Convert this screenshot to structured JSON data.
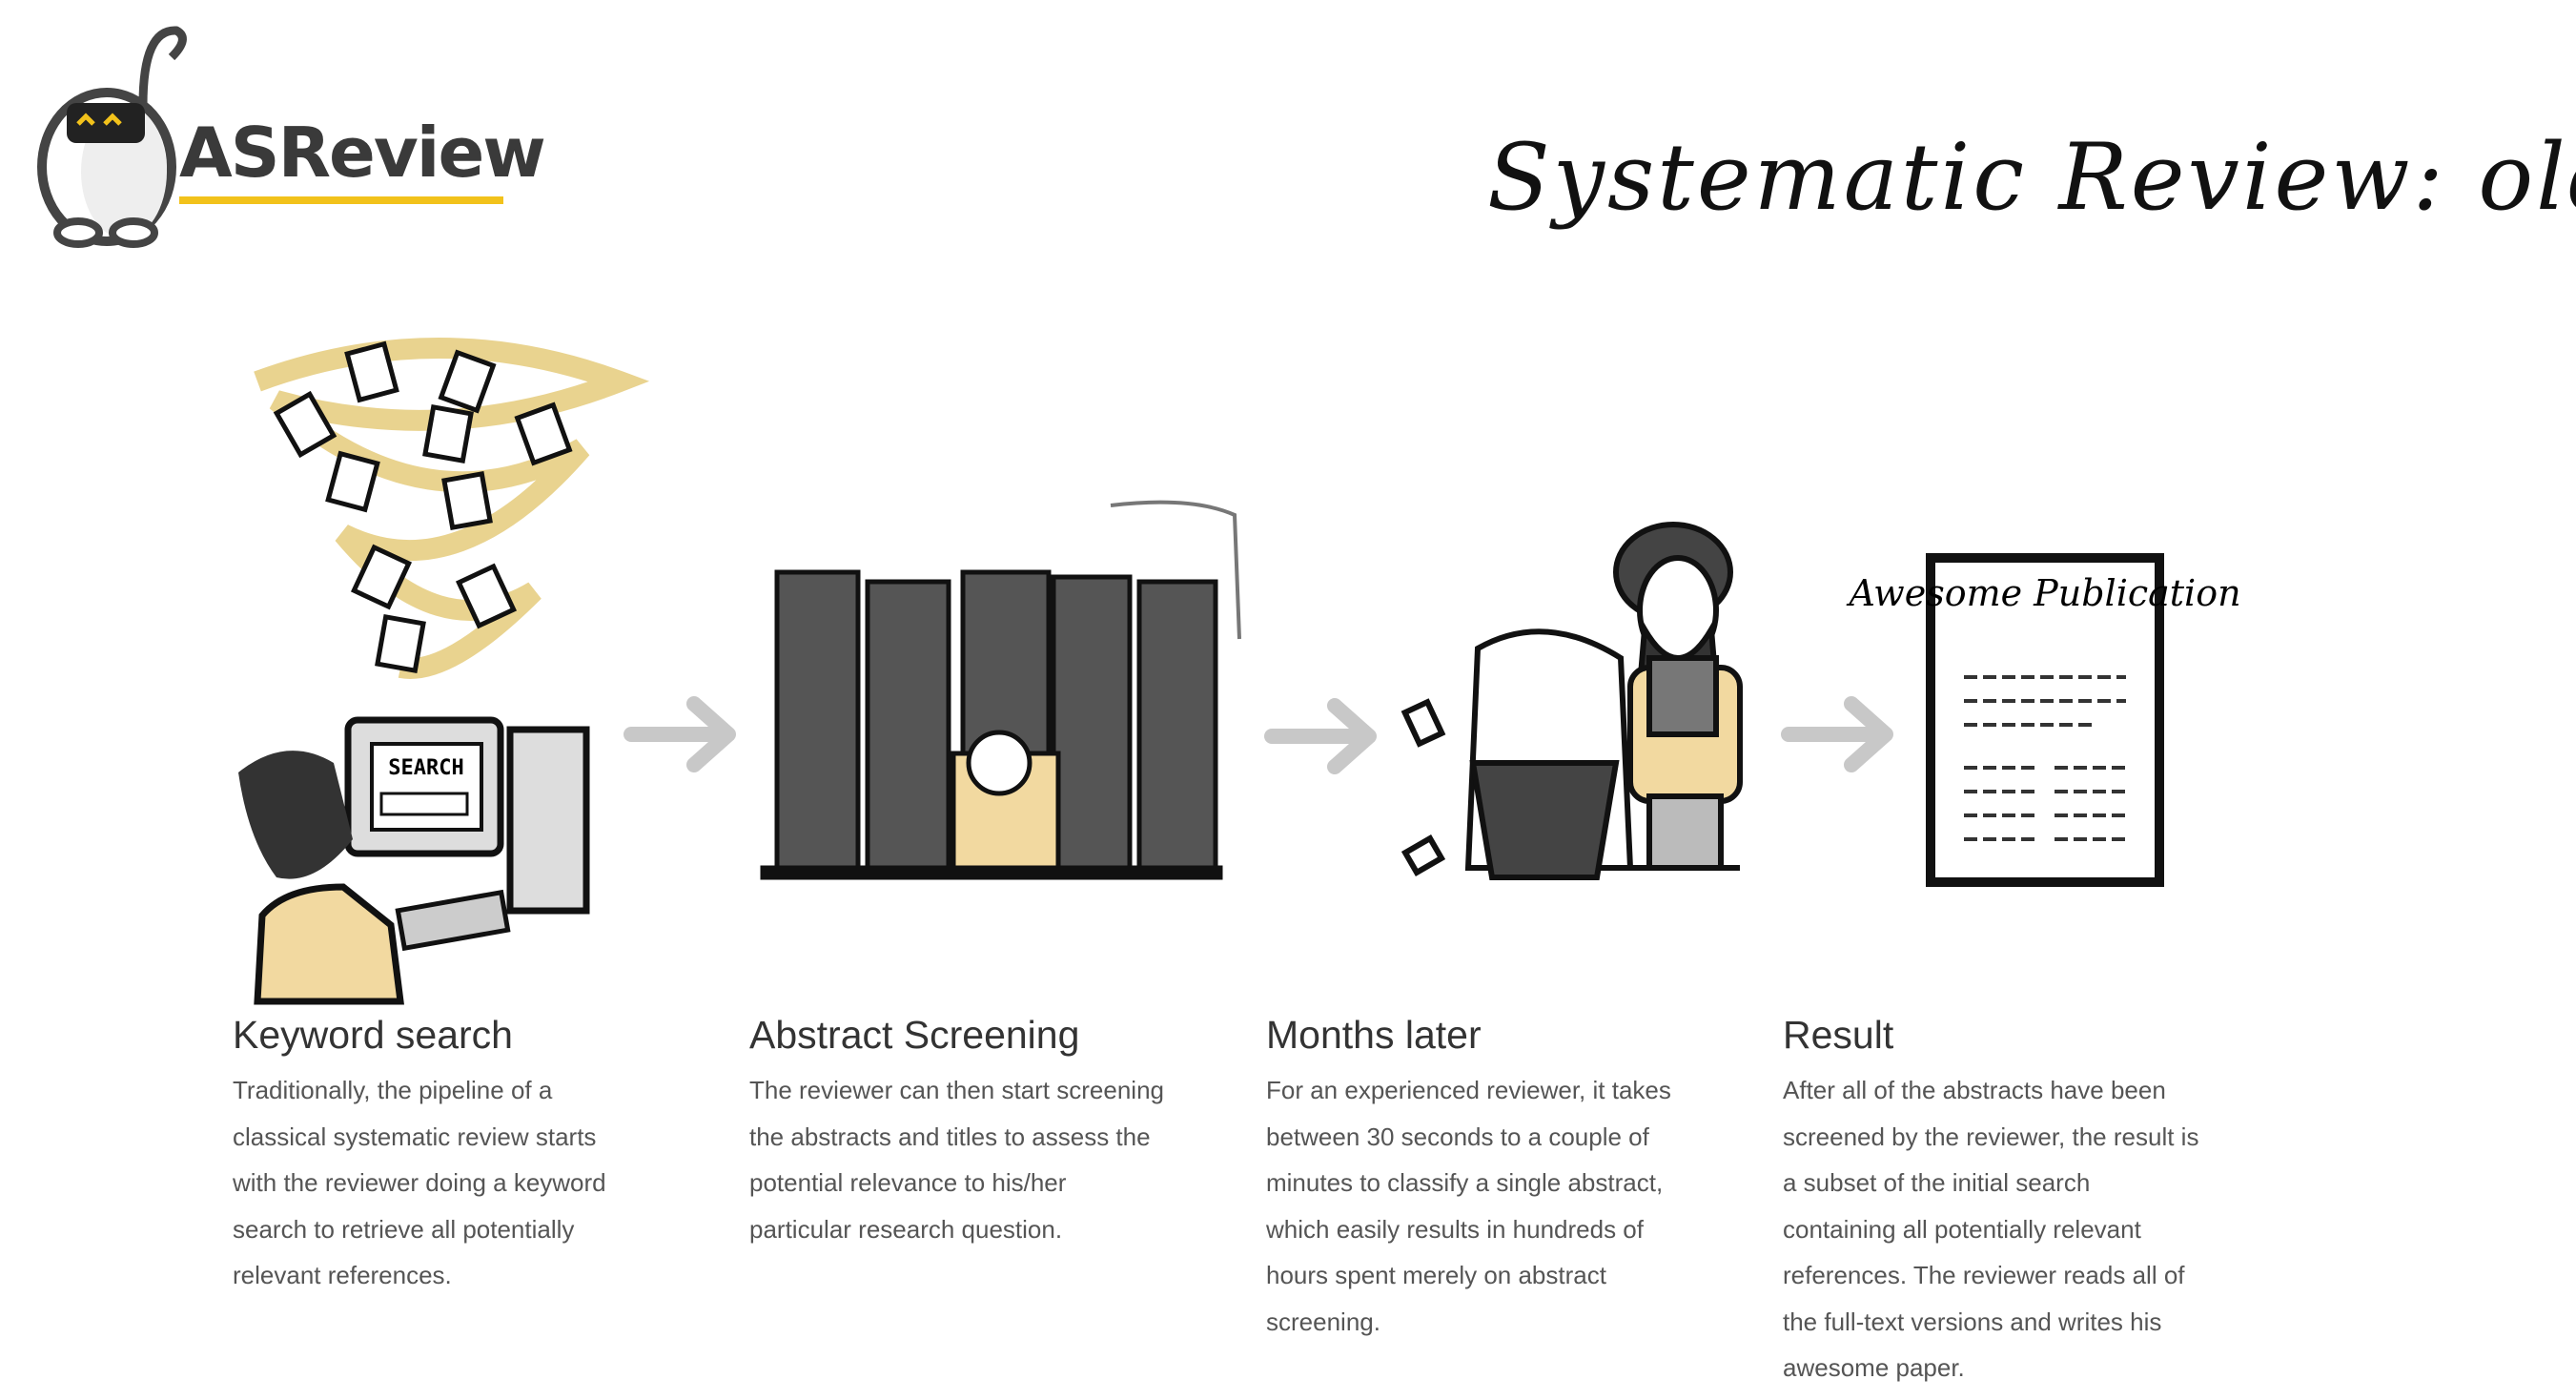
{
  "logo": {
    "text": "ASReview"
  },
  "header": {
    "title": "Systematic Review: old skool"
  },
  "illustrations": {
    "search_screen": "SEARCH",
    "publication_title": "Awesome Publication"
  },
  "steps": [
    {
      "heading": "Keyword search",
      "lines": [
        "Traditionally, the pipeline of a",
        "classical systematic review starts",
        "with the reviewer doing a keyword",
        "search to retrieve all potentially",
        "relevant references."
      ]
    },
    {
      "heading": "Abstract Screening",
      "lines": [
        "The reviewer can then start screening",
        "the abstracts and titles to assess the",
        "potential relevance to his/her",
        "particular research question."
      ]
    },
    {
      "heading": "Months later",
      "lines": [
        "For an experienced reviewer, it takes",
        "between 30 seconds to a couple of",
        "minutes to classify a single abstract,",
        "which easily results in hundreds of",
        "hours spent merely on abstract",
        "screening."
      ]
    },
    {
      "heading": "Result",
      "lines": [
        "After all of the abstracts have been",
        "screened by the reviewer, the result is",
        "a subset of the initial search",
        "containing all potentially relevant",
        "references. The reviewer reads all of",
        "the full-text versions and writes his",
        "awesome paper."
      ]
    }
  ]
}
